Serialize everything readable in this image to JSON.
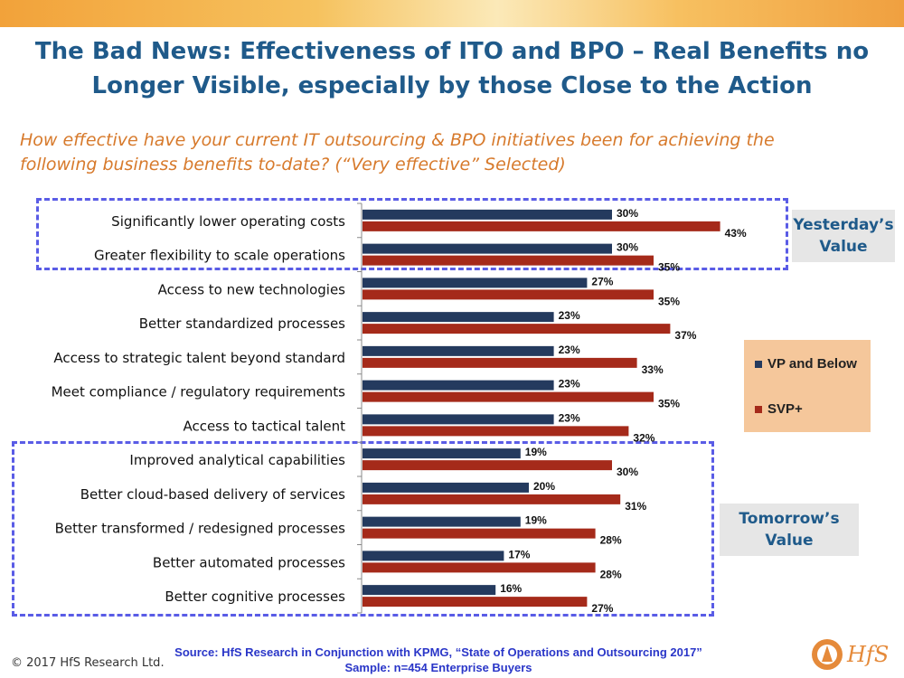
{
  "title": "The Bad News: Effectiveness of ITO and BPO – Real Benefits no Longer Visible, especially by those Close to the Action",
  "question": "How effective have your current IT outsourcing & BPO initiatives been for achieving the following business benefits to-date? (“Very effective” Selected)",
  "callouts": {
    "yesterday": "Yesterday’s\nValue",
    "tomorrow": "Tomorrow’s\nValue"
  },
  "footer": {
    "copyright": "© 2017 HfS Research Ltd.",
    "source_line1": "Source: HfS Research in Conjunction with KPMG, “State of Operations and Outsourcing 2017”",
    "source_line2": "Sample: n=454 Enterprise Buyers",
    "logo_text": "HfS"
  },
  "colors": {
    "vp": "#243a5e",
    "svp": "#a52a1a",
    "title": "#1f5a8a",
    "question": "#d77a2c",
    "dash": "#5a5ce6"
  },
  "chart_data": {
    "type": "bar",
    "orientation": "horizontal",
    "categories": [
      "Significantly lower operating costs",
      "Greater flexibility to scale operations",
      "Access to new technologies",
      "Better standardized processes",
      "Access to strategic talent beyond standard",
      "Meet compliance / regulatory requirements",
      "Access to tactical talent",
      "Improved analytical capabilities",
      "Better cloud-based delivery of services",
      "Better transformed / redesigned processes",
      "Better automated processes",
      "Better cognitive processes"
    ],
    "series": [
      {
        "name": "VP and Below",
        "values": [
          30,
          30,
          27,
          23,
          23,
          23,
          23,
          19,
          20,
          19,
          17,
          16
        ]
      },
      {
        "name": "SVP+",
        "values": [
          43,
          35,
          35,
          37,
          33,
          35,
          32,
          30,
          31,
          28,
          28,
          27
        ]
      }
    ],
    "value_suffix": "%",
    "xlim": [
      0,
      50
    ],
    "legend": "right"
  }
}
